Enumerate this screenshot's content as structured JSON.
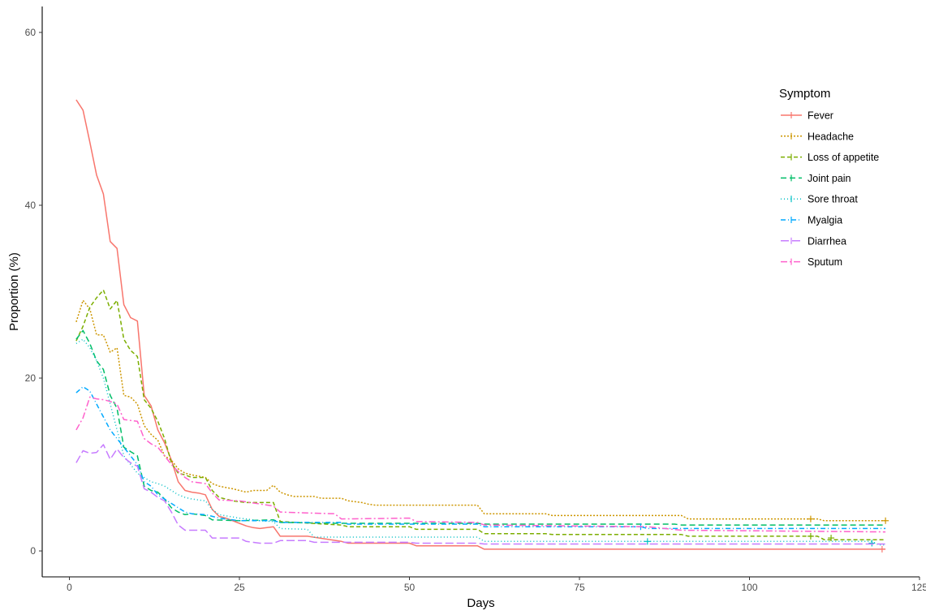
{
  "chart_data": {
    "type": "line",
    "title": "",
    "xlabel": "Days",
    "ylabel": "Proportion (%)",
    "xlim": [
      -4,
      125
    ],
    "ylim": [
      -3,
      63
    ],
    "xticks": [
      0,
      25,
      50,
      75,
      100,
      125
    ],
    "yticks": [
      0,
      20,
      40,
      60
    ],
    "grid": false,
    "legend": {
      "title": "Symptom",
      "position": "right"
    },
    "series": [
      {
        "name": "Fever",
        "color": "#F8766D",
        "dash": "",
        "points": [
          [
            1,
            52.2
          ],
          [
            2,
            51
          ],
          [
            3,
            47.3
          ],
          [
            4,
            43.5
          ],
          [
            5,
            41.3
          ],
          [
            6,
            35.8
          ],
          [
            7,
            35
          ],
          [
            8,
            28.5
          ],
          [
            9,
            27
          ],
          [
            10,
            26.6
          ],
          [
            11,
            18
          ],
          [
            12,
            16.8
          ],
          [
            13,
            14
          ],
          [
            14,
            12.5
          ],
          [
            15,
            10.5
          ],
          [
            16,
            8
          ],
          [
            17,
            7
          ],
          [
            18,
            6.8
          ],
          [
            19,
            6.7
          ],
          [
            20,
            6.5
          ],
          [
            21,
            4.8
          ],
          [
            22,
            4
          ],
          [
            23,
            3.8
          ],
          [
            25,
            3.2
          ],
          [
            26,
            2.9
          ],
          [
            27,
            2.7
          ],
          [
            28,
            2.6
          ],
          [
            30,
            2.8
          ],
          [
            31,
            1.7
          ],
          [
            35,
            1.7
          ],
          [
            40,
            1.1
          ],
          [
            41,
            0.9
          ],
          [
            50,
            0.9
          ],
          [
            51,
            0.6
          ],
          [
            60,
            0.6
          ],
          [
            61,
            0.2
          ],
          [
            120,
            0.2
          ]
        ],
        "censor": [
          [
            119.5,
            0.2
          ]
        ]
      },
      {
        "name": "Headache",
        "color": "#CD9600",
        "dash": "2,2",
        "points": [
          [
            1,
            26.5
          ],
          [
            2,
            29
          ],
          [
            3,
            28
          ],
          [
            4,
            25
          ],
          [
            5,
            25
          ],
          [
            6,
            23
          ],
          [
            7,
            23.5
          ],
          [
            8,
            18
          ],
          [
            9,
            17.8
          ],
          [
            10,
            17
          ],
          [
            11,
            14.5
          ],
          [
            12,
            13.5
          ],
          [
            13,
            12.8
          ],
          [
            14,
            11
          ],
          [
            15,
            10.5
          ],
          [
            16,
            9.5
          ],
          [
            17,
            9
          ],
          [
            18,
            8.8
          ],
          [
            20,
            8.5
          ],
          [
            21,
            7.8
          ],
          [
            22,
            7.5
          ],
          [
            24,
            7.2
          ],
          [
            26,
            6.8
          ],
          [
            27,
            7
          ],
          [
            29,
            7
          ],
          [
            30,
            7.6
          ],
          [
            31,
            6.8
          ],
          [
            32,
            6.5
          ],
          [
            33,
            6.3
          ],
          [
            36,
            6.3
          ],
          [
            37,
            6.1
          ],
          [
            40,
            6.1
          ],
          [
            41,
            5.8
          ],
          [
            43,
            5.6
          ],
          [
            44,
            5.4
          ],
          [
            45,
            5.3
          ],
          [
            60,
            5.3
          ],
          [
            61,
            4.3
          ],
          [
            70,
            4.3
          ],
          [
            71,
            4.1
          ],
          [
            90,
            4.1
          ],
          [
            91,
            3.7
          ],
          [
            110,
            3.7
          ],
          [
            111,
            3.5
          ],
          [
            120,
            3.5
          ]
        ],
        "censor": [
          [
            109,
            3.7
          ],
          [
            120,
            3.5
          ]
        ]
      },
      {
        "name": "Loss of appetite",
        "color": "#7CAE00",
        "dash": "5,3",
        "points": [
          [
            1,
            24.3
          ],
          [
            2,
            26
          ],
          [
            3,
            28.2
          ],
          [
            4,
            29.3
          ],
          [
            5,
            30.2
          ],
          [
            6,
            28
          ],
          [
            7,
            29
          ],
          [
            8,
            24.5
          ],
          [
            9,
            23.2
          ],
          [
            10,
            22.5
          ],
          [
            11,
            17.5
          ],
          [
            12,
            16.5
          ],
          [
            13,
            15
          ],
          [
            14,
            13
          ],
          [
            15,
            10.2
          ],
          [
            16,
            9
          ],
          [
            17,
            8.8
          ],
          [
            18,
            8.5
          ],
          [
            20,
            8.5
          ],
          [
            21,
            7
          ],
          [
            22,
            6.2
          ],
          [
            24,
            5.8
          ],
          [
            26,
            5.6
          ],
          [
            30,
            5.6
          ],
          [
            31,
            3.4
          ],
          [
            40,
            3
          ],
          [
            41,
            2.8
          ],
          [
            50,
            2.8
          ],
          [
            51,
            2.5
          ],
          [
            60,
            2.5
          ],
          [
            61,
            2
          ],
          [
            70,
            2
          ],
          [
            71,
            1.9
          ],
          [
            90,
            1.9
          ],
          [
            91,
            1.7
          ],
          [
            110,
            1.7
          ],
          [
            111,
            1.3
          ],
          [
            120,
            1.3
          ]
        ],
        "censor": [
          [
            109,
            1.7
          ],
          [
            112,
            1.5
          ]
        ]
      },
      {
        "name": "Joint pain",
        "color": "#00BE67",
        "dash": "7,4",
        "points": [
          [
            1,
            24.5
          ],
          [
            2,
            25.5
          ],
          [
            3,
            24
          ],
          [
            4,
            22
          ],
          [
            5,
            21
          ],
          [
            6,
            18
          ],
          [
            7,
            16.5
          ],
          [
            8,
            12
          ],
          [
            9,
            11.5
          ],
          [
            10,
            11
          ],
          [
            11,
            7.5
          ],
          [
            12,
            7
          ],
          [
            13,
            6.8
          ],
          [
            14,
            6
          ],
          [
            15,
            5
          ],
          [
            16,
            4.5
          ],
          [
            17,
            4.2
          ],
          [
            18,
            4.3
          ],
          [
            20,
            4.1
          ],
          [
            21,
            3.6
          ],
          [
            25,
            3.5
          ],
          [
            30,
            3.6
          ],
          [
            31,
            3.3
          ],
          [
            40,
            3.2
          ],
          [
            60,
            3.2
          ],
          [
            61,
            3.1
          ],
          [
            89,
            3.1
          ],
          [
            90,
            3
          ],
          [
            120,
            3
          ]
        ],
        "censor": []
      },
      {
        "name": "Sore throat",
        "color": "#00BFC4",
        "dash": "1,3",
        "points": [
          [
            1,
            24
          ],
          [
            2,
            24.5
          ],
          [
            3,
            23.5
          ],
          [
            4,
            22
          ],
          [
            5,
            20
          ],
          [
            6,
            17
          ],
          [
            7,
            14
          ],
          [
            8,
            11
          ],
          [
            9,
            10
          ],
          [
            10,
            9
          ],
          [
            11,
            8.5
          ],
          [
            12,
            8
          ],
          [
            13,
            7.8
          ],
          [
            14,
            7.5
          ],
          [
            15,
            7
          ],
          [
            16,
            6.5
          ],
          [
            17,
            6.2
          ],
          [
            18,
            6
          ],
          [
            20,
            5.8
          ],
          [
            21,
            4.8
          ],
          [
            22,
            4.2
          ],
          [
            25,
            3.8
          ],
          [
            28,
            3.5
          ],
          [
            30,
            3.4
          ],
          [
            31,
            2.6
          ],
          [
            35,
            2.5
          ],
          [
            36,
            1.6
          ],
          [
            60,
            1.6
          ],
          [
            61,
            1.1
          ],
          [
            118,
            1.1
          ],
          [
            119,
            0.7
          ],
          [
            120,
            0.7
          ]
        ],
        "censor": [
          [
            85,
            1.1
          ],
          [
            118,
            0.9
          ]
        ]
      },
      {
        "name": "Myalgia",
        "color": "#00A9FF",
        "dash": "6,3,1,3",
        "points": [
          [
            1,
            18.3
          ],
          [
            2,
            19
          ],
          [
            3,
            18.5
          ],
          [
            4,
            17
          ],
          [
            5,
            15.5
          ],
          [
            6,
            14
          ],
          [
            7,
            13
          ],
          [
            8,
            12
          ],
          [
            9,
            11
          ],
          [
            10,
            10
          ],
          [
            11,
            8
          ],
          [
            12,
            7.5
          ],
          [
            13,
            6.5
          ],
          [
            14,
            6
          ],
          [
            15,
            5.5
          ],
          [
            16,
            5
          ],
          [
            17,
            4.5
          ],
          [
            18,
            4.3
          ],
          [
            20,
            4.2
          ],
          [
            21,
            4
          ],
          [
            22,
            3.8
          ],
          [
            25,
            3.5
          ],
          [
            30,
            3.5
          ],
          [
            31,
            3.3
          ],
          [
            40,
            3.3
          ],
          [
            41,
            3.1
          ],
          [
            60,
            3.1
          ],
          [
            61,
            2.8
          ],
          [
            84,
            2.8
          ],
          [
            85,
            2.6
          ],
          [
            120,
            2.6
          ]
        ],
        "censor": [
          [
            84,
            2.8
          ]
        ]
      },
      {
        "name": "Diarrhea",
        "color": "#C77CFF",
        "dash": "10,4",
        "points": [
          [
            1,
            10.2
          ],
          [
            2,
            11.6
          ],
          [
            3,
            11.3
          ],
          [
            4,
            11.4
          ],
          [
            5,
            12.3
          ],
          [
            6,
            10.6
          ],
          [
            7,
            11.8
          ],
          [
            8,
            10.8
          ],
          [
            9,
            10.2
          ],
          [
            10,
            9.8
          ],
          [
            11,
            7.2
          ],
          [
            12,
            6.8
          ],
          [
            13,
            6.2
          ],
          [
            14,
            5.8
          ],
          [
            15,
            4.5
          ],
          [
            16,
            3
          ],
          [
            17,
            2.4
          ],
          [
            20,
            2.4
          ],
          [
            21,
            1.5
          ],
          [
            25,
            1.5
          ],
          [
            26,
            1.1
          ],
          [
            28,
            0.9
          ],
          [
            30,
            0.9
          ],
          [
            31,
            1.2
          ],
          [
            35,
            1.2
          ],
          [
            36,
            1
          ],
          [
            50,
            1
          ],
          [
            51,
            0.9
          ],
          [
            60,
            0.9
          ],
          [
            61,
            0.8
          ],
          [
            120,
            0.8
          ]
        ],
        "censor": []
      },
      {
        "name": "Sputum",
        "color": "#FF61CC",
        "dash": "8,3,2,3",
        "points": [
          [
            1,
            14
          ],
          [
            2,
            15.4
          ],
          [
            3,
            17.8
          ],
          [
            4,
            17.6
          ],
          [
            5,
            17.5
          ],
          [
            6,
            17.3
          ],
          [
            7,
            17
          ],
          [
            8,
            15.2
          ],
          [
            10,
            15
          ],
          [
            11,
            13
          ],
          [
            12,
            12.4
          ],
          [
            13,
            12
          ],
          [
            14,
            11
          ],
          [
            15,
            10
          ],
          [
            16,
            9.2
          ],
          [
            17,
            8.5
          ],
          [
            18,
            8
          ],
          [
            20,
            7.8
          ],
          [
            21,
            6.7
          ],
          [
            22,
            5.9
          ],
          [
            25,
            5.8
          ],
          [
            30,
            5.2
          ],
          [
            31,
            4.5
          ],
          [
            35,
            4.4
          ],
          [
            39,
            4.3
          ],
          [
            40,
            3.7
          ],
          [
            50,
            3.8
          ],
          [
            51,
            3.4
          ],
          [
            60,
            3.3
          ],
          [
            61,
            3
          ],
          [
            85,
            2.8
          ],
          [
            90,
            2.4
          ],
          [
            120,
            2.2
          ]
        ],
        "censor": []
      }
    ]
  }
}
